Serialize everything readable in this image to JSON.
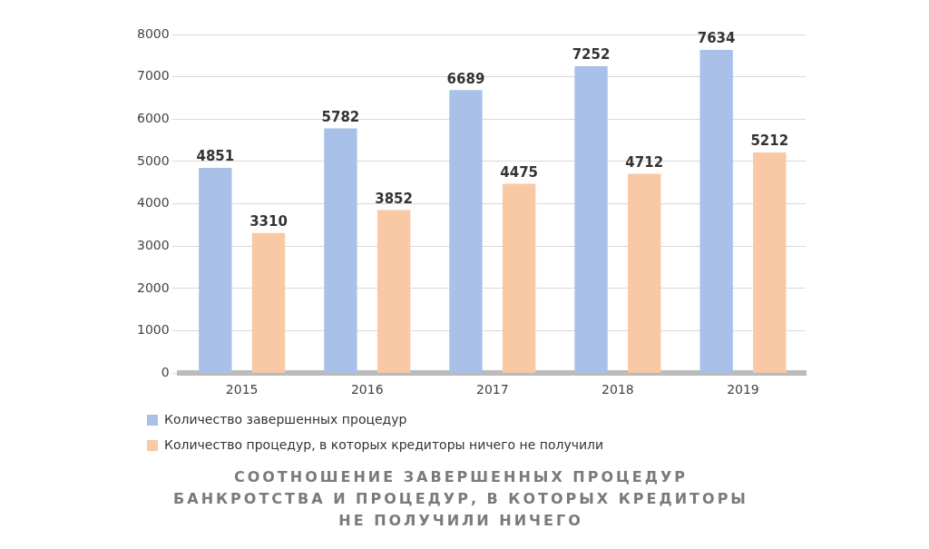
{
  "chart_data": {
    "type": "bar",
    "title": "СООТНОШЕНИЕ ЗАВЕРШЕННЫХ ПРОЦЕДУР БАНКРОТСТВА И ПРОЦЕДУР, В КОТОРЫХ КРЕДИТОРЫ НЕ ПОЛУЧИЛИ НИЧЕГО",
    "categories": [
      "2015",
      "2016",
      "2017",
      "2018",
      "2019"
    ],
    "series": [
      {
        "name": "Количество завершенных процедур",
        "color": "#a9c1e8",
        "values": [
          4851,
          5782,
          6689,
          7252,
          7634
        ]
      },
      {
        "name": "Количество процедур, в которых кредиторы ничего не получили",
        "color": "#f8c9a4",
        "values": [
          3310,
          3852,
          4475,
          4712,
          5212
        ]
      }
    ],
    "ylim": [
      0,
      8000
    ],
    "yticks": [
      0,
      1000,
      2000,
      3000,
      4000,
      5000,
      6000,
      7000,
      8000
    ],
    "grid": "y",
    "legend": "bottom",
    "data_labels": true
  }
}
